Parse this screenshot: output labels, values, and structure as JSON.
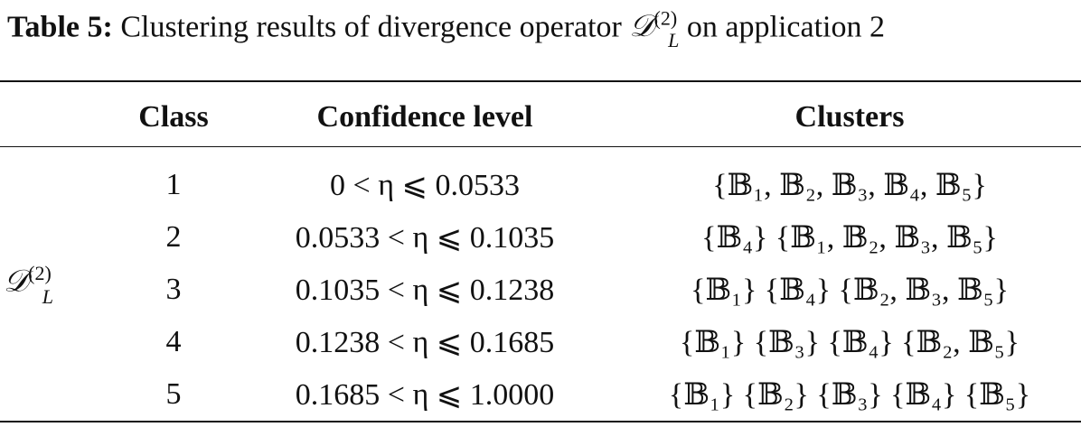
{
  "caption": {
    "label": "Table 5:",
    "text_before": "Clustering results of divergence operator",
    "operator": "𝒟",
    "superscript": "(2)",
    "subscript": "L",
    "text_after": "on application 2"
  },
  "table": {
    "columns": [
      "Class",
      "Confidence level",
      "Clusters"
    ],
    "row_group": {
      "operator": "𝒟",
      "superscript": "(2)",
      "subscript": "L"
    },
    "rows": [
      [
        1,
        "0 < η ⩽ 0.0533",
        "{𝔹₁, 𝔹₂, 𝔹₃, 𝔹₄, 𝔹₅}"
      ],
      [
        2,
        "0.0533 < η ⩽ 0.1035",
        "{𝔹₄} {𝔹₁, 𝔹₂, 𝔹₃, 𝔹₅}"
      ],
      [
        3,
        "0.1035 < η ⩽ 0.1238",
        "{𝔹₁} {𝔹₄} {𝔹₂, 𝔹₃, 𝔹₅}"
      ],
      [
        4,
        "0.1238 < η ⩽ 0.1685",
        "{𝔹₁} {𝔹₃} {𝔹₄} {𝔹₂, 𝔹₅}"
      ],
      [
        5,
        "0.1685 < η ⩽ 1.0000",
        "{𝔹₁} {𝔹₂} {𝔹₃} {𝔹₄} {𝔹₅}"
      ]
    ]
  }
}
